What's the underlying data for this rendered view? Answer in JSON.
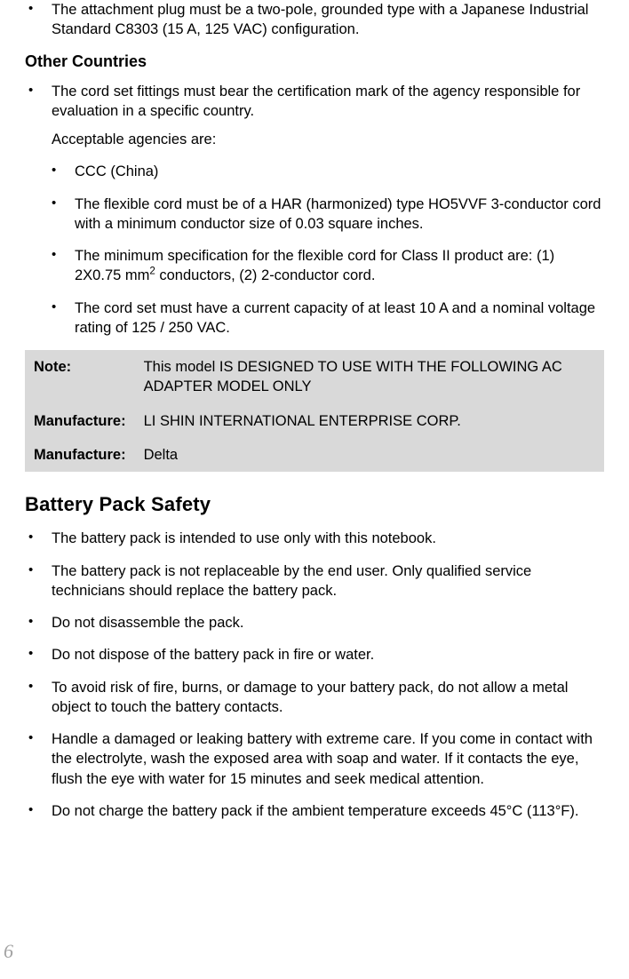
{
  "top_bullet": {
    "text": "The attachment plug must be a two-pole, grounded type with a Japanese Industrial Standard C8303 (15 A, 125 VAC) configuration."
  },
  "other_countries": {
    "heading": "Other Countries",
    "lead_bullet": "The cord set fittings must bear the certification mark of the agency responsible for evaluation in a specific country.",
    "lead_sub": "Acceptable agencies are:",
    "items": [
      "CCC (China)",
      "The flexible cord must be of a HAR (harmonized) type HO5VVF 3-conductor cord with a minimum conductor size of 0.03 square inches.",
      "__SPECIAL_MM2__",
      "The cord set must have a current capacity of at least 10 A and a nominal voltage rating of 125 / 250 VAC."
    ],
    "mm2_prefix": "The minimum specification for the flexible cord for Class II product are: (1) 2X0.75 mm",
    "mm2_sup": "2",
    "mm2_suffix": " conductors, (2) 2-conductor cord."
  },
  "note_table": {
    "rows": [
      {
        "label": "Note:",
        "value": "This model IS DESIGNED TO USE WITH THE FOLLOWING AC ADAPTER MODEL ONLY"
      },
      {
        "label": "Manufacture:",
        "value": "LI SHIN INTERNATIONAL ENTERPRISE CORP."
      },
      {
        "label": "Manufacture:",
        "value": "Delta"
      }
    ]
  },
  "battery": {
    "heading": "Battery Pack Safety",
    "items": [
      "The battery pack is intended to use only with this notebook.",
      "The battery pack is not replaceable by the end user. Only qualified service technicians should replace the battery pack.",
      "Do not disassemble the pack.",
      "Do not dispose of the battery pack in fire or water.",
      "To avoid risk of fire, burns, or damage to your battery pack, do not allow a metal object to touch the battery contacts.",
      "Handle a damaged or leaking battery with extreme care. If you come in contact with the electrolyte, wash the exposed area with soap and water. If it contacts the eye, flush the eye with water for 15 minutes and seek medical attention.",
      "Do not charge the battery pack if the ambient temperature exceeds 45°C (113°F)."
    ]
  },
  "page_number": "6",
  "bullet_glyph": "•"
}
